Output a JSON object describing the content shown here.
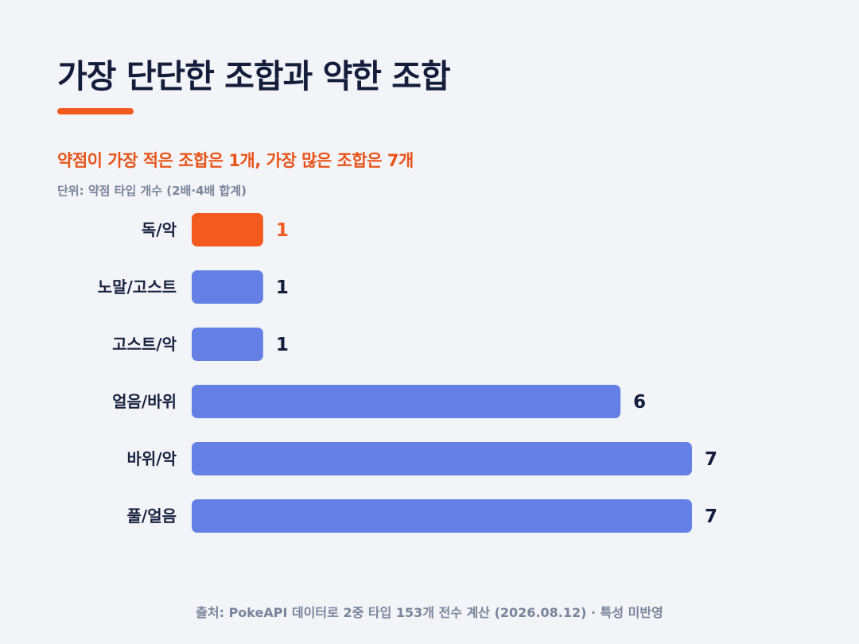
{
  "title": "가장 단단한 조합과 약한 조합",
  "subtitle": "약점이 가장 적은 조합은 1개, 가장 많은 조합은 7개",
  "unit_note": "단위: 약점 타입 개수 (2배·4배 합계)",
  "source": "출처: PokeAPI 데이터로 2중 타입 153개 전수 계산 (2026.08.12) · 특성 미반영",
  "colors": {
    "highlight": "#f25a1f",
    "bar": "#6580e4",
    "title": "#141d3b",
    "subtitle": "#e8541a",
    "muted": "#7a849a"
  },
  "chart_data": {
    "type": "bar",
    "orientation": "horizontal",
    "categories": [
      "독/악",
      "노말/고스트",
      "고스트/악",
      "얼음/바위",
      "바위/악",
      "풀/얼음"
    ],
    "values": [
      1,
      1,
      1,
      6,
      7,
      7
    ],
    "highlight_index": 0,
    "xlim": [
      0,
      7
    ],
    "grid": false,
    "legend": "none"
  }
}
